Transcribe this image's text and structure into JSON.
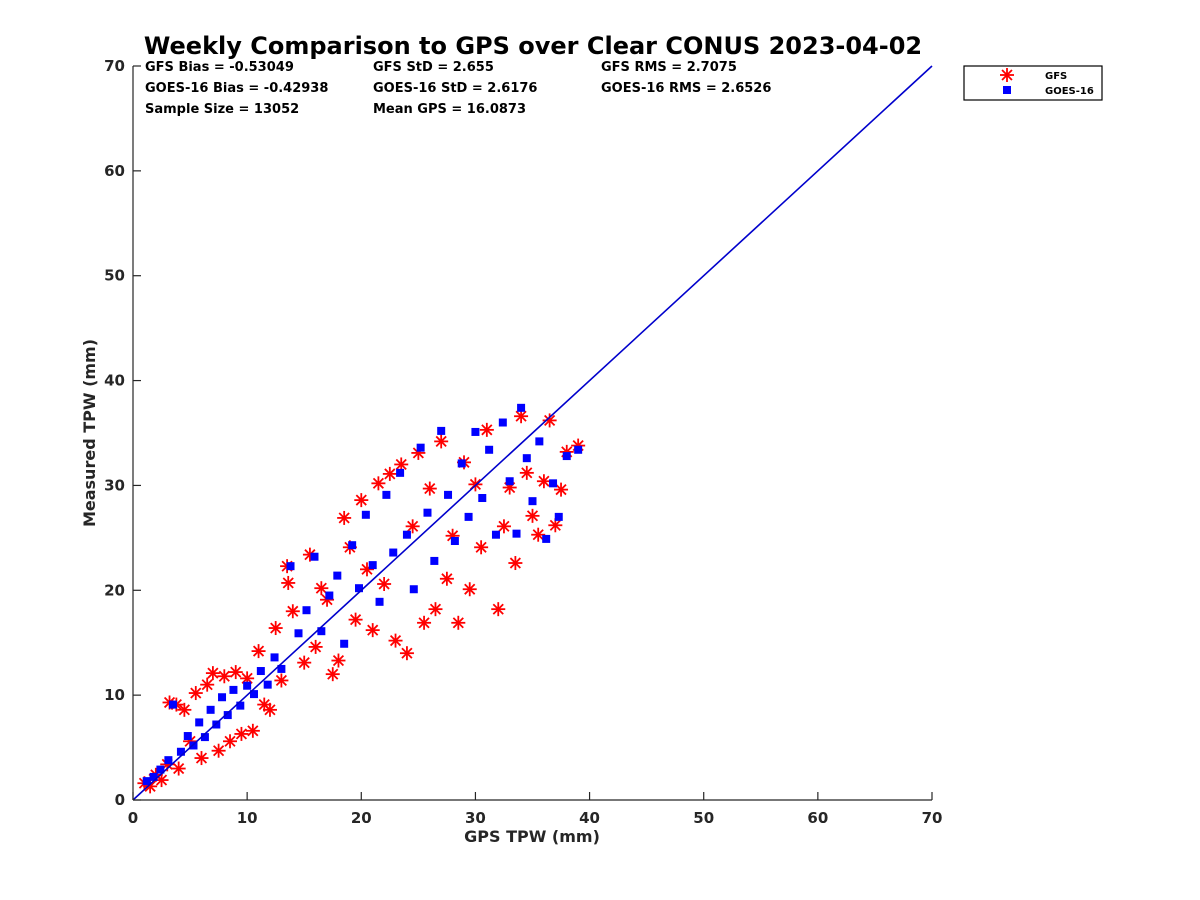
{
  "chart_data": {
    "type": "scatter",
    "title": "Weekly Comparison to GPS over Clear CONUS 2023-04-02",
    "xlabel": "GPS TPW (mm)",
    "ylabel": "Measured TPW (mm)",
    "xlim": [
      0,
      70
    ],
    "ylim": [
      0,
      70
    ],
    "xticks": [
      "0",
      "10",
      "20",
      "30",
      "40",
      "50",
      "60",
      "70"
    ],
    "yticks": [
      "0",
      "10",
      "20",
      "30",
      "40",
      "50",
      "60",
      "70"
    ],
    "grid": false,
    "legend_position": "outside-top-right",
    "stats": [
      [
        "GFS Bias = -0.53049",
        "GFS StD = 2.655",
        "GFS RMS = 2.7075"
      ],
      [
        "GOES-16 Bias = -0.42938",
        "GOES-16 StD = 2.6176",
        "GOES-16 RMS = 2.6526"
      ],
      [
        "Sample Size = 13052",
        "Mean GPS = 16.0873"
      ]
    ],
    "reference_line": {
      "x": [
        0,
        70
      ],
      "y": [
        0,
        70
      ],
      "color": "#0000cc"
    },
    "series": [
      {
        "name": "GFS",
        "marker": "asterisk",
        "color": "#ff0000",
        "points": [
          [
            1.0,
            1.6
          ],
          [
            1.5,
            1.3
          ],
          [
            2.0,
            2.4
          ],
          [
            2.5,
            1.9
          ],
          [
            3.0,
            3.4
          ],
          [
            3.2,
            9.3
          ],
          [
            3.8,
            9.1
          ],
          [
            4.0,
            3.0
          ],
          [
            4.5,
            8.6
          ],
          [
            5.0,
            5.6
          ],
          [
            5.5,
            10.2
          ],
          [
            6.0,
            4.0
          ],
          [
            6.5,
            11.0
          ],
          [
            7.0,
            12.1
          ],
          [
            7.5,
            4.7
          ],
          [
            8.0,
            11.8
          ],
          [
            8.5,
            5.6
          ],
          [
            9.0,
            12.2
          ],
          [
            9.5,
            6.3
          ],
          [
            10.0,
            11.6
          ],
          [
            10.5,
            6.6
          ],
          [
            11.0,
            14.2
          ],
          [
            11.5,
            9.1
          ],
          [
            12.0,
            8.6
          ],
          [
            12.5,
            16.4
          ],
          [
            13.0,
            11.4
          ],
          [
            13.5,
            22.3
          ],
          [
            13.6,
            20.7
          ],
          [
            14.0,
            18.0
          ],
          [
            15.0,
            13.1
          ],
          [
            15.5,
            23.4
          ],
          [
            16.0,
            14.6
          ],
          [
            16.5,
            20.2
          ],
          [
            17.0,
            19.1
          ],
          [
            17.5,
            12.0
          ],
          [
            18.0,
            13.3
          ],
          [
            18.5,
            26.9
          ],
          [
            19.0,
            24.1
          ],
          [
            19.5,
            17.2
          ],
          [
            20.0,
            28.6
          ],
          [
            20.5,
            22.0
          ],
          [
            21.0,
            16.2
          ],
          [
            21.5,
            30.2
          ],
          [
            22.0,
            20.6
          ],
          [
            22.5,
            31.1
          ],
          [
            23.0,
            15.2
          ],
          [
            23.5,
            32.0
          ],
          [
            24.0,
            14.0
          ],
          [
            24.5,
            26.1
          ],
          [
            25.0,
            33.1
          ],
          [
            25.5,
            16.9
          ],
          [
            26.0,
            29.7
          ],
          [
            26.5,
            18.2
          ],
          [
            27.0,
            34.2
          ],
          [
            27.5,
            21.1
          ],
          [
            28.0,
            25.2
          ],
          [
            28.5,
            16.9
          ],
          [
            29.0,
            32.2
          ],
          [
            29.5,
            20.1
          ],
          [
            30.0,
            30.1
          ],
          [
            30.5,
            24.1
          ],
          [
            31.0,
            35.3
          ],
          [
            32.0,
            18.2
          ],
          [
            32.5,
            26.1
          ],
          [
            33.0,
            29.8
          ],
          [
            33.5,
            22.6
          ],
          [
            34.0,
            36.6
          ],
          [
            34.5,
            31.2
          ],
          [
            35.0,
            27.1
          ],
          [
            35.5,
            25.3
          ],
          [
            36.0,
            30.4
          ],
          [
            36.5,
            36.2
          ],
          [
            37.0,
            26.2
          ],
          [
            37.5,
            29.6
          ],
          [
            38.0,
            33.2
          ],
          [
            39.0,
            33.8
          ]
        ]
      },
      {
        "name": "GOES-16",
        "marker": "square",
        "color": "#0000ff",
        "points": [
          [
            1.2,
            1.8
          ],
          [
            1.8,
            2.2
          ],
          [
            2.4,
            2.9
          ],
          [
            3.1,
            3.8
          ],
          [
            3.5,
            9.1
          ],
          [
            4.2,
            4.6
          ],
          [
            4.8,
            6.1
          ],
          [
            5.3,
            5.2
          ],
          [
            5.8,
            7.4
          ],
          [
            6.3,
            6.0
          ],
          [
            6.8,
            8.6
          ],
          [
            7.3,
            7.2
          ],
          [
            7.8,
            9.8
          ],
          [
            8.3,
            8.1
          ],
          [
            8.8,
            10.5
          ],
          [
            9.4,
            9.0
          ],
          [
            10.0,
            10.9
          ],
          [
            10.6,
            10.1
          ],
          [
            11.2,
            12.3
          ],
          [
            11.8,
            11.0
          ],
          [
            12.4,
            13.6
          ],
          [
            13.0,
            12.5
          ],
          [
            13.8,
            22.3
          ],
          [
            14.5,
            15.9
          ],
          [
            15.2,
            18.1
          ],
          [
            15.9,
            23.2
          ],
          [
            16.5,
            16.1
          ],
          [
            17.2,
            19.5
          ],
          [
            17.9,
            21.4
          ],
          [
            18.5,
            14.9
          ],
          [
            19.2,
            24.3
          ],
          [
            19.8,
            20.2
          ],
          [
            20.4,
            27.2
          ],
          [
            21.0,
            22.4
          ],
          [
            21.6,
            18.9
          ],
          [
            22.2,
            29.1
          ],
          [
            22.8,
            23.6
          ],
          [
            23.4,
            31.2
          ],
          [
            24.0,
            25.3
          ],
          [
            24.6,
            20.1
          ],
          [
            25.2,
            33.6
          ],
          [
            25.8,
            27.4
          ],
          [
            26.4,
            22.8
          ],
          [
            27.0,
            35.2
          ],
          [
            27.6,
            29.1
          ],
          [
            28.2,
            24.7
          ],
          [
            28.8,
            32.1
          ],
          [
            29.4,
            27.0
          ],
          [
            30.0,
            35.1
          ],
          [
            30.6,
            28.8
          ],
          [
            31.2,
            33.4
          ],
          [
            31.8,
            25.3
          ],
          [
            32.4,
            36.0
          ],
          [
            33.0,
            30.4
          ],
          [
            33.6,
            25.4
          ],
          [
            34.0,
            37.4
          ],
          [
            34.5,
            32.6
          ],
          [
            35.0,
            28.5
          ],
          [
            35.6,
            34.2
          ],
          [
            36.2,
            24.9
          ],
          [
            36.8,
            30.2
          ],
          [
            37.3,
            27.0
          ],
          [
            38.0,
            32.8
          ],
          [
            39.0,
            33.4
          ]
        ]
      }
    ]
  }
}
